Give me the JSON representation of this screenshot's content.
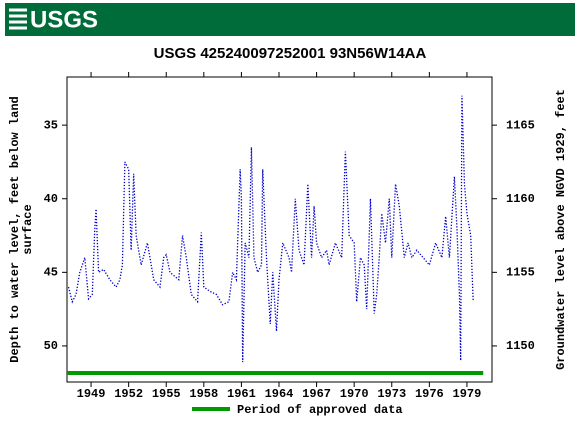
{
  "header": {
    "logo": "USGS"
  },
  "chart_data": {
    "type": "line",
    "title": "USGS 425240097252001  93N56W14AA",
    "ylabel": [
      "Depth to water level, feet below land",
      "surface"
    ],
    "y2label": "Groundwater level above NGVD 1929, feet",
    "xlim": [
      1947.08,
      1981.0
    ],
    "xticks": [
      1949,
      1952,
      1955,
      1958,
      1961,
      1964,
      1967,
      1970,
      1973,
      1976,
      1979
    ],
    "ylim": [
      31.73,
      52.45
    ],
    "y_inverted": true,
    "yticks": [
      35,
      40,
      45,
      50
    ],
    "y2lim": [
      1147.55,
      1168.27
    ],
    "y2ticks": [
      1150,
      1155,
      1160,
      1165
    ],
    "series": [
      {
        "color": "#0000cc",
        "x": [
          1947.2,
          1947.5,
          1947.8,
          1948.1,
          1948.5,
          1948.8,
          1949.1,
          1949.3,
          1949.4,
          1949.6,
          1950.0,
          1950.5,
          1951.0,
          1951.3,
          1951.5,
          1951.7,
          1952.0,
          1952.2,
          1952.4,
          1952.6,
          1953.0,
          1953.5,
          1954.0,
          1954.5,
          1954.8,
          1955.0,
          1955.3,
          1956.0,
          1956.3,
          1956.6,
          1957.0,
          1957.5,
          1957.8,
          1958.0,
          1958.5,
          1959.0,
          1959.5,
          1960.0,
          1960.3,
          1960.6,
          1960.9,
          1961.0,
          1961.1,
          1961.3,
          1961.6,
          1961.8,
          1962.0,
          1962.3,
          1962.6,
          1962.7,
          1962.8,
          1963.0,
          1963.3,
          1963.5,
          1963.8,
          1964.0,
          1964.3,
          1964.8,
          1965.0,
          1965.3,
          1965.6,
          1966.0,
          1966.3,
          1966.6,
          1966.8,
          1967.0,
          1967.4,
          1967.8,
          1968.0,
          1968.5,
          1969.0,
          1969.3,
          1969.6,
          1970.0,
          1970.2,
          1970.5,
          1970.8,
          1971.0,
          1971.3,
          1971.6,
          1971.8,
          1972.0,
          1972.2,
          1972.5,
          1972.8,
          1973.0,
          1973.3,
          1973.6,
          1974.0,
          1974.3,
          1974.6,
          1975.0,
          1975.5,
          1976.0,
          1976.5,
          1977.0,
          1977.3,
          1977.6,
          1978.0,
          1978.2,
          1978.4,
          1978.5,
          1978.6,
          1978.8,
          1979.0,
          1979.3,
          1979.5
        ],
        "values": [
          46,
          47,
          46.5,
          45,
          44,
          46.8,
          46.5,
          42,
          40.7,
          45,
          44.8,
          45.5,
          46,
          45.5,
          44.5,
          37.5,
          38,
          43.5,
          38.3,
          42.5,
          44.5,
          43,
          45.5,
          46,
          44,
          43.8,
          45,
          45.5,
          42.5,
          44,
          46.5,
          47,
          42.3,
          46,
          46.3,
          46.5,
          47.2,
          47,
          45,
          45.5,
          38,
          40,
          51.1,
          43,
          44,
          36.5,
          44,
          45,
          44.5,
          38,
          40,
          44,
          48.5,
          45,
          49,
          45.5,
          43,
          44,
          45,
          40,
          43.5,
          44.5,
          39,
          44,
          40.5,
          43,
          44,
          43.5,
          44.5,
          43,
          44,
          36.8,
          42.5,
          43,
          47,
          44,
          44.5,
          47.5,
          40,
          47.8,
          46.5,
          44,
          41,
          43,
          40,
          44,
          39,
          40.5,
          44,
          43,
          44,
          43.5,
          44,
          44.5,
          43,
          44,
          41.2,
          44,
          38.5,
          42,
          46.5,
          51,
          33,
          39,
          41,
          42.5,
          47
        ]
      }
    ],
    "approved": {
      "label": "Period of approved data",
      "color": "#009900",
      "x": [
        1947.08,
        1980.3
      ]
    }
  }
}
